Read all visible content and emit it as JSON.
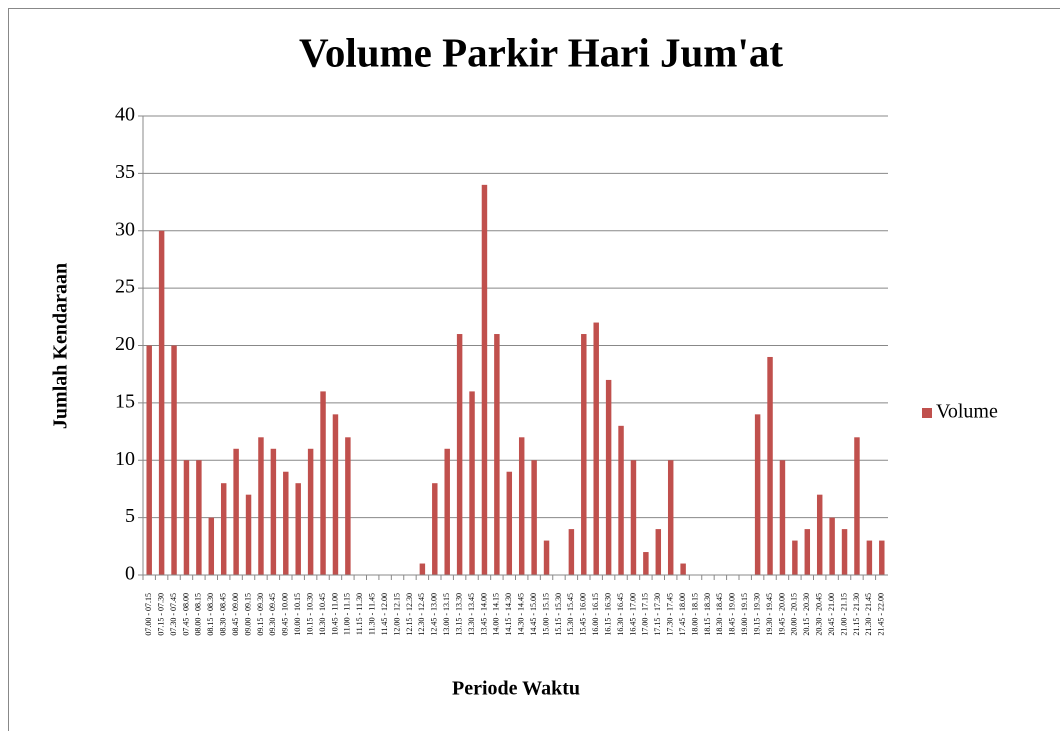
{
  "chart_data": {
    "type": "bar",
    "title": "Volume Parkir Hari Jum'at",
    "x_label": "Periode Waktu",
    "y_label": "Jumlah Kendaraan",
    "categories": [
      "07.00 - 07.15",
      "07.15 - 07.30",
      "07.30 - 07.45",
      "07.45 - 08.00",
      "08.00 - 08.15",
      "08.15 - 08.30",
      "08.30 - 08.45",
      "08.45 - 09.00",
      "09.00 - 09.15",
      "09.15 - 09.30",
      "09.30 - 09.45",
      "09.45 - 10.00",
      "10.00 - 10.15",
      "10.15 - 10.30",
      "10.30 - 10.45",
      "10.45 - 11.00",
      "11.00 - 11.15",
      "11.15 - 11.30",
      "11.30 - 11.45",
      "11.45 - 12.00",
      "12.00 - 12.15",
      "12.15 - 12.30",
      "12.30 - 12.45",
      "12.45 - 13.00",
      "13.00 - 13.15",
      "13.15 - 13.30",
      "13.30 - 13.45",
      "13.45 - 14.00",
      "14.00 - 14.15",
      "14.15 - 14.30",
      "14.30 - 14.45",
      "14.45 - 15.00",
      "15.00 - 15.15",
      "15.15 - 15.30",
      "15.30 - 15.45",
      "15.45 - 16.00",
      "16.00 - 16.15",
      "16.15 - 16.30",
      "16.30 - 16.45",
      "16.45 - 17.00",
      "17.00 - 17.15",
      "17.15 - 17.30",
      "17.30 - 17.45",
      "17.45 - 18.00",
      "18.00 - 18.15",
      "18.15 - 18.30",
      "18.30 - 18.45",
      "18.45 - 19.00",
      "19.00 - 19.15",
      "19.15 - 19.30",
      "19.30 - 19.45",
      "19.45 - 20.00",
      "20.00 - 20.15",
      "20.15 - 20.30",
      "20.30 - 20.45",
      "20.45 - 21.00",
      "21.00 - 21.15",
      "21.15 - 21.30",
      "21.30 - 21.45",
      "21.45 - 22.00"
    ],
    "series": [
      {
        "name": "Volume",
        "color": "#c0504d",
        "values": [
          20,
          30,
          20,
          10,
          10,
          5,
          8,
          11,
          7,
          12,
          11,
          9,
          8,
          11,
          16,
          14,
          12,
          0,
          0,
          0,
          0,
          0,
          1,
          8,
          11,
          21,
          16,
          34,
          21,
          9,
          12,
          10,
          3,
          0,
          4,
          21,
          22,
          17,
          13,
          10,
          2,
          4,
          10,
          1,
          0,
          0,
          0,
          0,
          0,
          14,
          19,
          10,
          3,
          4,
          7,
          5,
          4,
          12,
          3,
          3
        ]
      }
    ],
    "ylim": [
      0,
      40
    ],
    "yticks": [
      0,
      5,
      10,
      15,
      20,
      25,
      30,
      35,
      40
    ],
    "grid": true,
    "legend": "right"
  }
}
